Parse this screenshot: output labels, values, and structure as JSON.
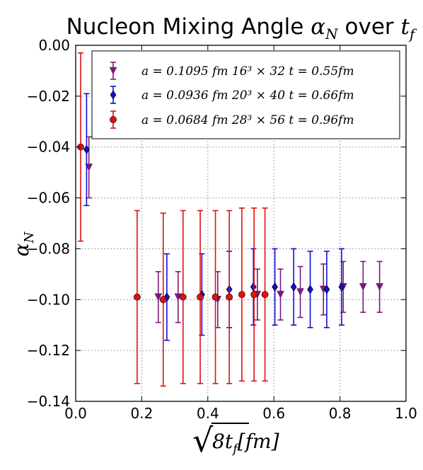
{
  "chart_data": {
    "type": "scatter",
    "title": {
      "prefix": "Nucleon Mixing Angle ",
      "alpha": "α",
      "alpha_sub": "N",
      "middle": " over ",
      "t": "t",
      "t_sub": "f"
    },
    "xlabel": {
      "root": "√",
      "body": "8",
      "t": "t",
      "t_sub": "f",
      "unit": "[fm]"
    },
    "ylabel": {
      "alpha": "α",
      "alpha_sub": "N"
    },
    "xlim": [
      0.0,
      1.0
    ],
    "ylim": [
      -0.14,
      0.0
    ],
    "x_ticks": [
      "0.0",
      "0.2",
      "0.4",
      "0.6",
      "0.8",
      "1.0"
    ],
    "y_ticks": [
      "0.00",
      "−0.02",
      "−0.04",
      "−0.06",
      "−0.08",
      "−0.10",
      "−0.12",
      "−0.14"
    ],
    "grid": true,
    "legend_position": "top-right",
    "series": [
      {
        "name": "a = 0.1095 fm 16³ × 32 t = 0.55fm",
        "color": "#7b1a7b",
        "marker": "triangle-down",
        "points": [
          {
            "x": 0.04,
            "y": -0.048,
            "yerr": 0.012
          },
          {
            "x": 0.25,
            "y": -0.099,
            "yerr": 0.01
          },
          {
            "x": 0.31,
            "y": -0.099,
            "yerr": 0.01
          },
          {
            "x": 0.43,
            "y": -0.1,
            "yerr": 0.011
          },
          {
            "x": 0.55,
            "y": -0.098,
            "yerr": 0.01
          },
          {
            "x": 0.62,
            "y": -0.098,
            "yerr": 0.01
          },
          {
            "x": 0.68,
            "y": -0.097,
            "yerr": 0.01
          },
          {
            "x": 0.75,
            "y": -0.096,
            "yerr": 0.01
          },
          {
            "x": 0.81,
            "y": -0.095,
            "yerr": 0.01
          },
          {
            "x": 0.87,
            "y": -0.095,
            "yerr": 0.01
          },
          {
            "x": 0.92,
            "y": -0.095,
            "yerr": 0.01
          }
        ]
      },
      {
        "name": "a = 0.0936 fm 20³ × 40 t = 0.66fm",
        "color": "#1010d0",
        "marker": "diamond",
        "points": [
          {
            "x": 0.033,
            "y": -0.041,
            "yerr": 0.022
          },
          {
            "x": 0.276,
            "y": -0.099,
            "yerr": 0.017
          },
          {
            "x": 0.382,
            "y": -0.098,
            "yerr": 0.016
          },
          {
            "x": 0.465,
            "y": -0.096,
            "yerr": 0.015
          },
          {
            "x": 0.538,
            "y": -0.095,
            "yerr": 0.015
          },
          {
            "x": 0.603,
            "y": -0.095,
            "yerr": 0.015
          },
          {
            "x": 0.66,
            "y": -0.095,
            "yerr": 0.015
          },
          {
            "x": 0.71,
            "y": -0.096,
            "yerr": 0.015
          },
          {
            "x": 0.76,
            "y": -0.096,
            "yerr": 0.015
          },
          {
            "x": 0.805,
            "y": -0.095,
            "yerr": 0.015
          }
        ]
      },
      {
        "name": "a = 0.0684 fm 28³ × 56 t = 0.96fm",
        "color": "#e01010",
        "marker": "circle",
        "points": [
          {
            "x": 0.015,
            "y": -0.04,
            "yerr": 0.037
          },
          {
            "x": 0.186,
            "y": -0.099,
            "yerr": 0.034
          },
          {
            "x": 0.265,
            "y": -0.1,
            "yerr": 0.034
          },
          {
            "x": 0.325,
            "y": -0.099,
            "yerr": 0.034
          },
          {
            "x": 0.377,
            "y": -0.099,
            "yerr": 0.034
          },
          {
            "x": 0.423,
            "y": -0.099,
            "yerr": 0.034
          },
          {
            "x": 0.465,
            "y": -0.099,
            "yerr": 0.034
          },
          {
            "x": 0.503,
            "y": -0.098,
            "yerr": 0.034
          },
          {
            "x": 0.54,
            "y": -0.098,
            "yerr": 0.034
          },
          {
            "x": 0.573,
            "y": -0.098,
            "yerr": 0.034
          }
        ]
      }
    ]
  }
}
